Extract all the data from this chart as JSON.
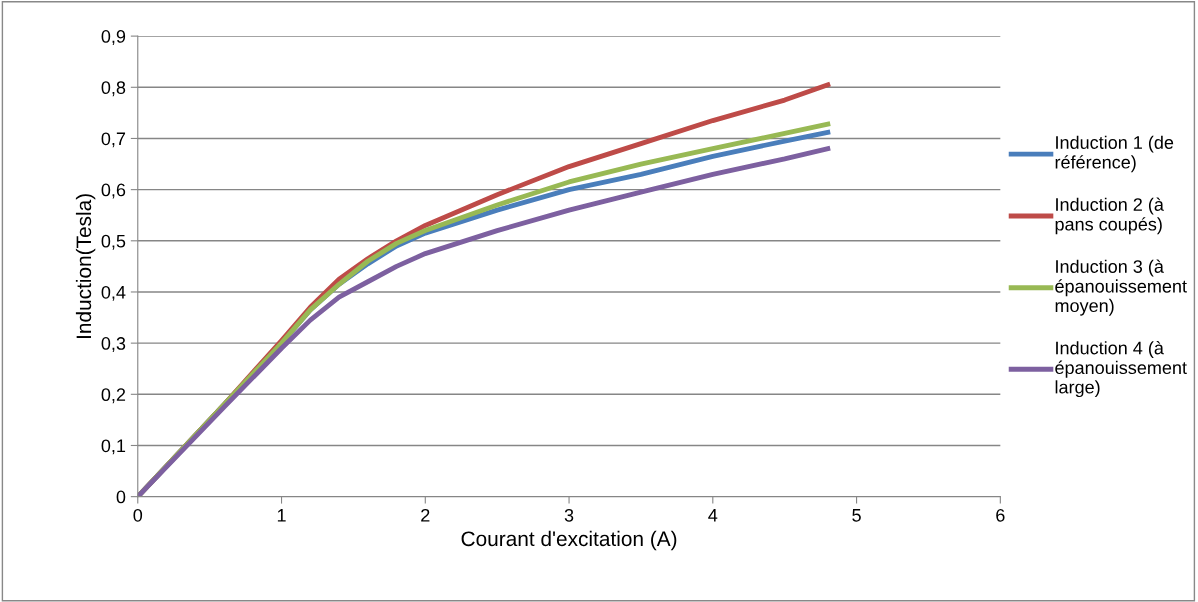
{
  "chart_data": {
    "type": "line",
    "xlabel": "Courant d'excitation (A)",
    "ylabel": "Induction(Tesla)",
    "xlim": [
      0,
      6
    ],
    "xticks": [
      0,
      1,
      2,
      3,
      4,
      5,
      6
    ],
    "ylim": [
      0,
      0.9
    ],
    "yticks": [
      {
        "value": 0,
        "label": "0"
      },
      {
        "value": 0.1,
        "label": "0,1"
      },
      {
        "value": 0.2,
        "label": "0,2"
      },
      {
        "value": 0.3,
        "label": "0,3"
      },
      {
        "value": 0.4,
        "label": "0,4"
      },
      {
        "value": 0.5,
        "label": "0,5"
      },
      {
        "value": 0.6,
        "label": "0,6"
      },
      {
        "value": 0.7,
        "label": "0,7"
      },
      {
        "value": 0.8,
        "label": "0,8"
      },
      {
        "value": 0.9,
        "label": "0,9"
      }
    ],
    "grid": "y",
    "legend": "right",
    "marker": "none",
    "line_style": "solid",
    "x": [
      0,
      0.6,
      1.0,
      1.2,
      1.4,
      1.6,
      1.8,
      2.0,
      2.5,
      3.0,
      3.5,
      4.0,
      4.5,
      4.8
    ],
    "series": [
      {
        "name": "Induction 1 (de référence)",
        "color": "#4a7ebb",
        "values": [
          0,
          0.18,
          0.3,
          0.365,
          0.415,
          0.455,
          0.49,
          0.515,
          0.56,
          0.6,
          0.63,
          0.665,
          0.695,
          0.712
        ]
      },
      {
        "name": "Induction 2 (à pans coupés)",
        "color": "#be4b48",
        "values": [
          0,
          0.18,
          0.305,
          0.37,
          0.425,
          0.465,
          0.5,
          0.53,
          0.59,
          0.645,
          0.69,
          0.735,
          0.775,
          0.805
        ]
      },
      {
        "name": "Induction 3 (à épanouissement moyen)",
        "color": "#98b954",
        "values": [
          0,
          0.18,
          0.3,
          0.365,
          0.415,
          0.46,
          0.495,
          0.52,
          0.57,
          0.615,
          0.65,
          0.68,
          0.71,
          0.728
        ]
      },
      {
        "name": "Induction 4 (à épanouissement large)",
        "color": "#7d60a0",
        "values": [
          0,
          0.175,
          0.29,
          0.345,
          0.39,
          0.42,
          0.45,
          0.475,
          0.52,
          0.56,
          0.595,
          0.63,
          0.66,
          0.68
        ]
      }
    ]
  }
}
